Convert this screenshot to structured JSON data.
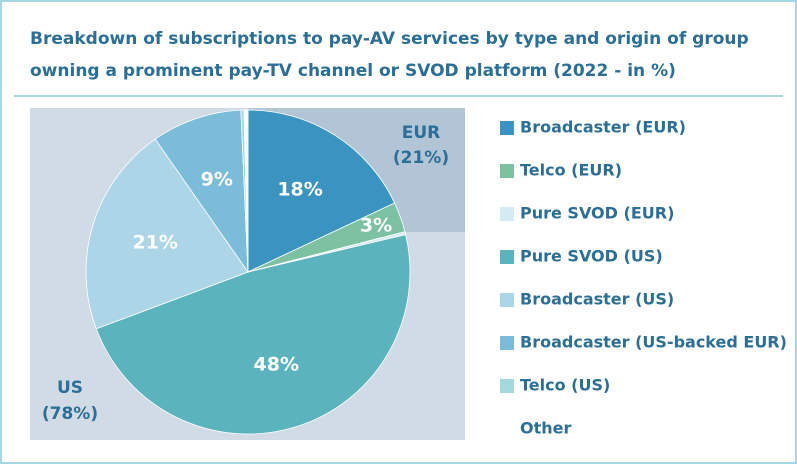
{
  "chart_data": {
    "type": "pie",
    "title": [
      "Breakdown of subscriptions to pay-AV services by type and origin of group",
      "owning a prominent pay-TV channel or SVOD platform (2022 - in %)"
    ],
    "categories": [
      "Broadcaster (EUR)",
      "Telco (EUR)",
      "Pure SVOD (EUR)",
      "Pure SVOD (US)",
      "Broadcaster (US)",
      "Broadcaster (US-backed EUR)",
      "Telco (US)",
      "Other"
    ],
    "values": [
      18,
      3,
      0.3,
      48,
      21,
      9,
      0.3,
      0.4
    ],
    "value_labels": [
      "18%",
      "3%",
      null,
      "48%",
      "21%",
      "9%",
      null,
      null
    ],
    "colors": [
      "#3a94bf",
      "#7cc1a2",
      "#d3ecf1",
      "#5bb4bd",
      "#acd6e7",
      "#7bbcd9",
      "#a3d8dc",
      "#ffffff"
    ],
    "annotations": [
      {
        "lines": [
          "EUR",
          "(21%)"
        ]
      },
      {
        "lines": [
          "US",
          "(78%)"
        ]
      }
    ],
    "legend": "right"
  }
}
